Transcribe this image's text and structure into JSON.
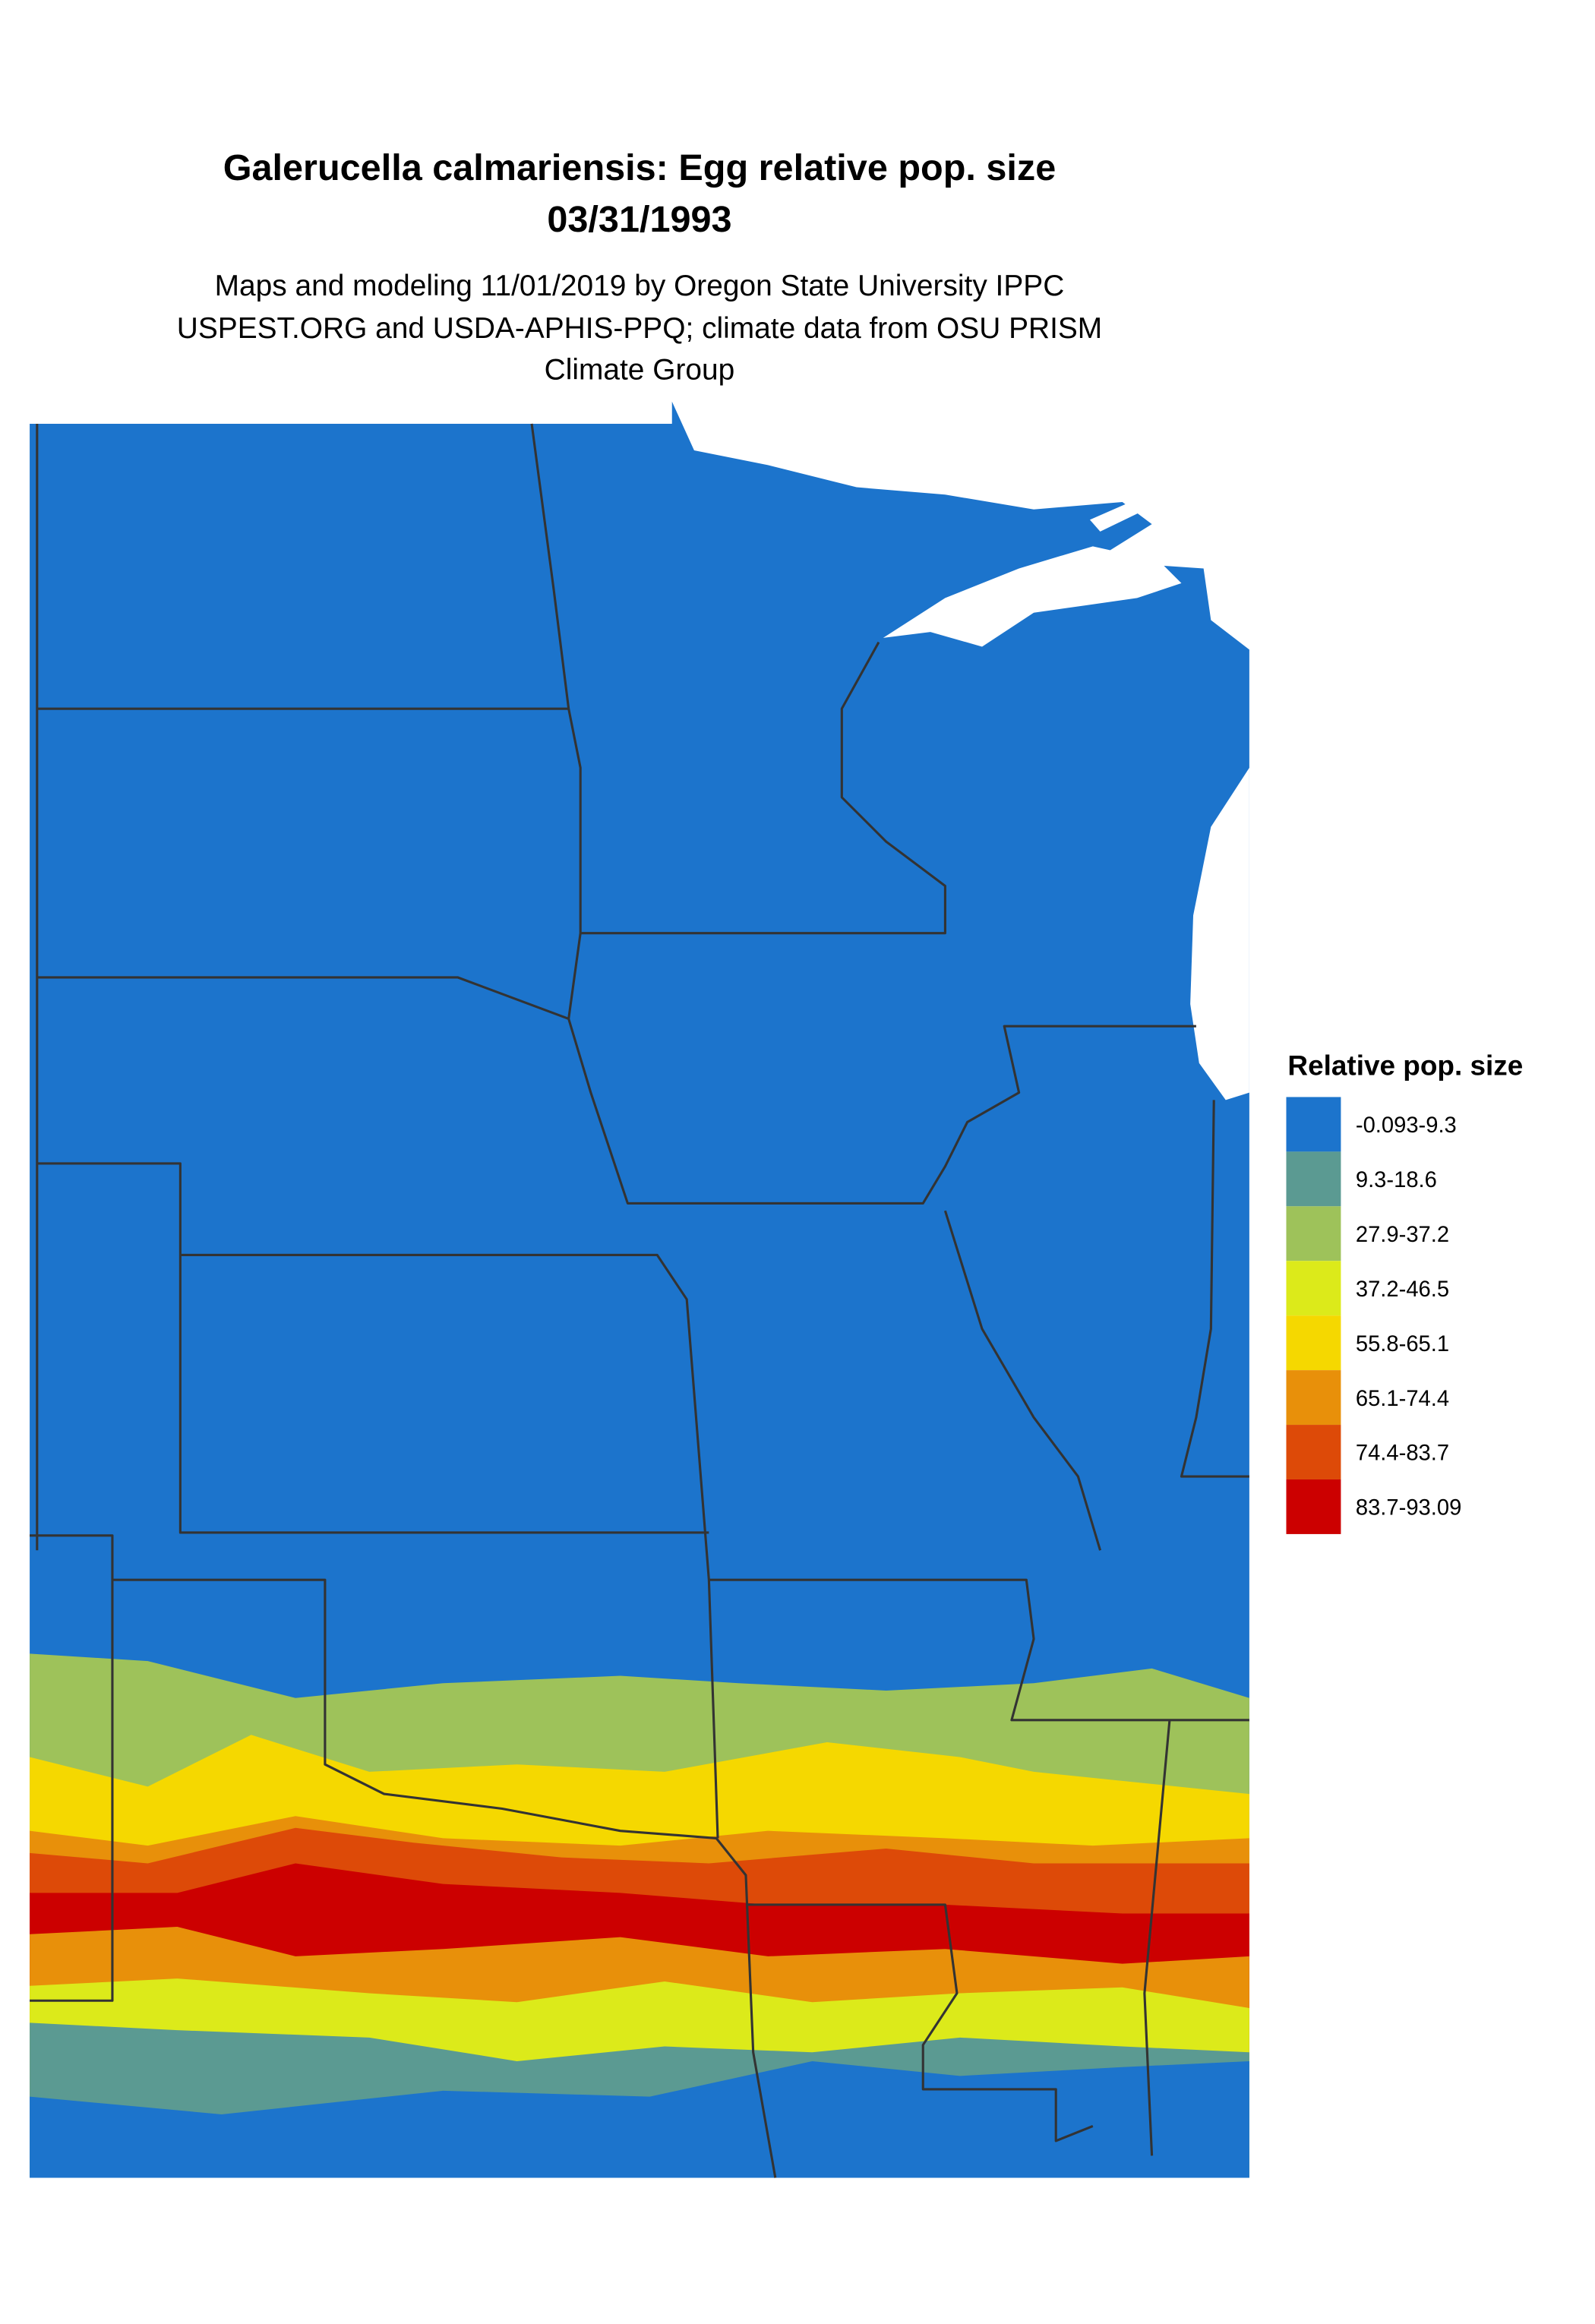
{
  "header": {
    "title": "Galerucella calmariensis: Egg relative pop. size",
    "date": "03/31/1993",
    "subtitle_lines": [
      "Maps and modeling 11/01/2019 by Oregon State University IPPC",
      "USPEST.ORG and USDA-APHIS-PPQ; climate data from OSU PRISM",
      "Climate Group"
    ]
  },
  "legend": {
    "title": "Relative pop. size",
    "items": [
      {
        "label": "-0.093-9.3",
        "color": "#1c74cc"
      },
      {
        "label": "9.3-18.6",
        "color": "#5b9a92"
      },
      {
        "label": "27.9-37.2",
        "color": "#9ec25a"
      },
      {
        "label": "37.2-46.5",
        "color": "#dcea1a"
      },
      {
        "label": "55.8-65.1",
        "color": "#f5d800"
      },
      {
        "label": "65.1-74.4",
        "color": "#e8900a"
      },
      {
        "label": "74.4-83.7",
        "color": "#dd4a08"
      },
      {
        "label": "83.7-93.09",
        "color": "#cc0000"
      }
    ]
  }
}
